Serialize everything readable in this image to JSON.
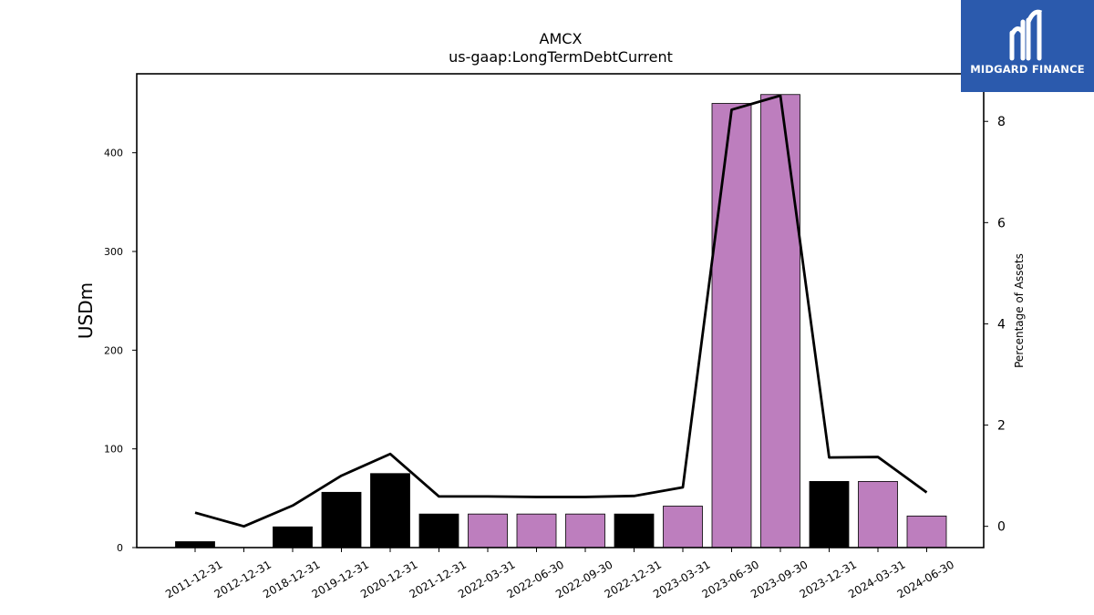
{
  "brand": {
    "name": "MIDGARD FINANCE",
    "logo_icon": "midgard-logo-icon",
    "background": "#2b5aad"
  },
  "chart_data": {
    "type": "bar",
    "title": "AMCX",
    "subtitle": "us-gaap:LongTermDebtCurrent",
    "ylabel": "USDm",
    "y2label": "Percentage of Assets",
    "ylim": [
      0,
      480
    ],
    "y2lim": [
      -0.42,
      8.94
    ],
    "yticks": [
      0,
      100,
      200,
      300,
      400
    ],
    "y2ticks": [
      0,
      2,
      4,
      6,
      8
    ],
    "categories": [
      "2011-12-31",
      "2012-12-31",
      "2018-12-31",
      "2019-12-31",
      "2020-12-31",
      "2021-12-31",
      "2022-03-31",
      "2022-06-30",
      "2022-09-30",
      "2022-12-31",
      "2023-03-31",
      "2023-06-30",
      "2023-09-30",
      "2023-12-31",
      "2024-03-31",
      "2024-06-30"
    ],
    "series": [
      {
        "axis": "left",
        "kind": "bar",
        "values": [
          6,
          0,
          21,
          56,
          75,
          34,
          34,
          34,
          34,
          34,
          42,
          450,
          459,
          67,
          67,
          32
        ],
        "colors": [
          "#000000",
          "#000000",
          "#000000",
          "#000000",
          "#000000",
          "#000000",
          "#bd7ebe",
          "#bd7ebe",
          "#bd7ebe",
          "#000000",
          "#bd7ebe",
          "#bd7ebe",
          "#bd7ebe",
          "#000000",
          "#bd7ebe",
          "#bd7ebe"
        ]
      },
      {
        "axis": "right",
        "kind": "line",
        "color": "#000000",
        "values": [
          0.27,
          0.0,
          0.41,
          1.0,
          1.43,
          0.59,
          0.59,
          0.58,
          0.58,
          0.6,
          0.77,
          8.23,
          8.51,
          1.36,
          1.37,
          0.67
        ]
      }
    ],
    "grid": false,
    "legend": "none"
  }
}
